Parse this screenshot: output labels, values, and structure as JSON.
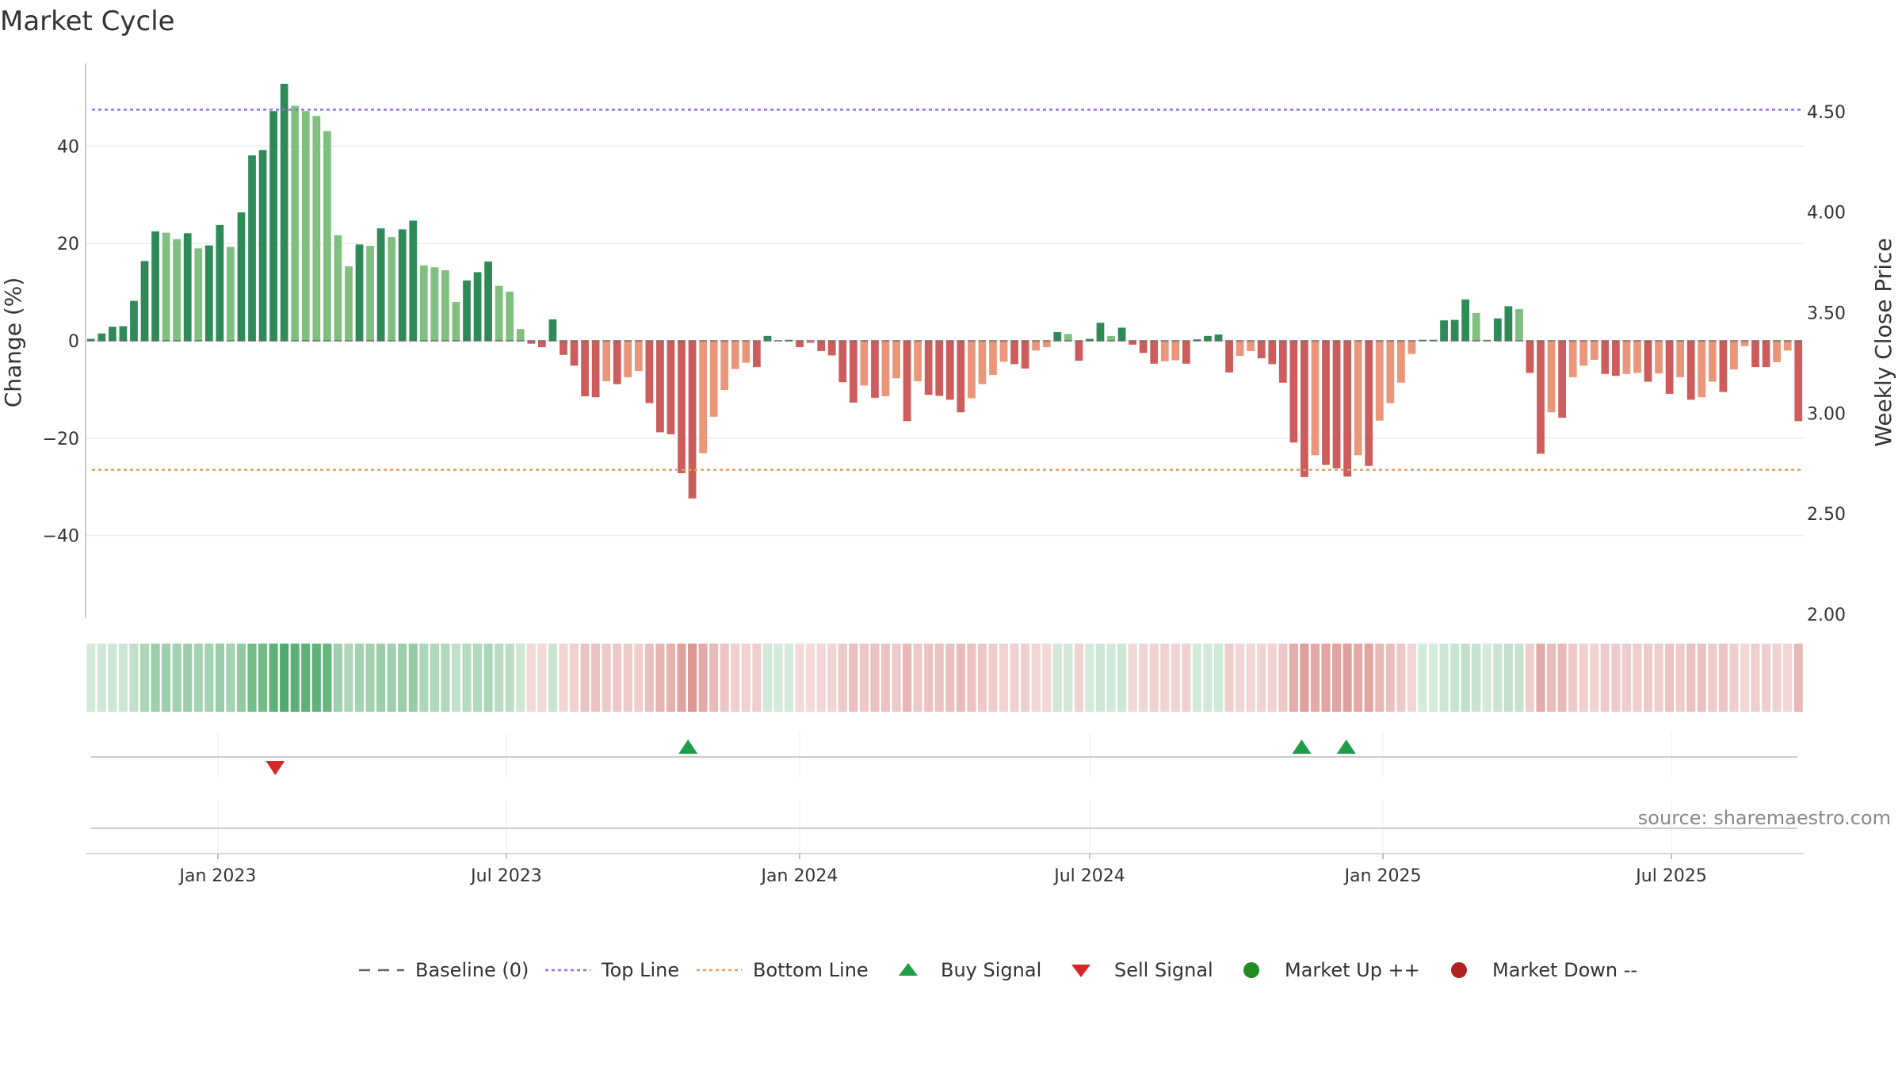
{
  "chart_data": {
    "type": "bar",
    "title": "Market Cycle",
    "ylabel": "Change (%)",
    "y2label": "Weekly Close Price",
    "ylim": [
      -57,
      57
    ],
    "y2lim": [
      1.98,
      4.74
    ],
    "yticks": [
      -40,
      -20,
      0,
      20,
      40
    ],
    "yticks_labels": [
      "−40",
      "−20",
      "0",
      "20",
      "40"
    ],
    "y2ticks": [
      2.0,
      2.5,
      3.0,
      3.5,
      4.0,
      4.5
    ],
    "y2ticks_labels": [
      "2.00",
      "2.50",
      "3.00",
      "3.50",
      "4.00",
      "4.50"
    ],
    "x_start": "2022-10-10",
    "x_end": "2025-09-22",
    "xticks": [
      "2023-01-01",
      "2023-07-01",
      "2024-01-01",
      "2024-07-01",
      "2025-01-01",
      "2025-07-01"
    ],
    "xticks_labels": [
      "Jan 2023",
      "Jul 2023",
      "Jan 2024",
      "Jul 2024",
      "Jan 2025",
      "Jul 2025"
    ],
    "top_line": 47.5,
    "bottom_line": -26.5,
    "values": [
      0.4,
      1.5,
      2.9,
      3.0,
      8.2,
      16.4,
      22.5,
      22.2,
      20.9,
      22.1,
      19.0,
      19.6,
      23.8,
      19.3,
      26.4,
      38.1,
      39.2,
      47.2,
      52.8,
      48.3,
      47.2,
      46.2,
      43.1,
      21.7,
      15.3,
      19.8,
      19.5,
      23.1,
      21.3,
      22.9,
      24.7,
      15.5,
      15.1,
      14.5,
      8.0,
      12.4,
      14.1,
      16.3,
      11.3,
      10.1,
      2.4,
      -0.6,
      -1.3,
      4.4,
      -2.9,
      -5.1,
      -11.4,
      -11.6,
      -8.3,
      -8.9,
      -7.5,
      -6.2,
      -12.8,
      -18.8,
      -19.2,
      -27.2,
      -32.4,
      -23.1,
      -15.6,
      -10.1,
      -5.8,
      -4.5,
      -5.4,
      1.0,
      0.1,
      0.2,
      -1.3,
      -0.5,
      -2.1,
      -3.0,
      -8.5,
      -12.7,
      -9.2,
      -11.7,
      -11.4,
      -7.7,
      -16.5,
      -8.3,
      -11.1,
      -11.3,
      -12.1,
      -14.7,
      -11.8,
      -8.9,
      -7.0,
      -4.3,
      -4.8,
      -5.7,
      -2.0,
      -1.3,
      1.8,
      1.4,
      -4.1,
      0.4,
      3.7,
      1.0,
      2.7,
      -0.8,
      -2.5,
      -4.7,
      -4.2,
      -4.0,
      -4.7,
      0.3,
      1.0,
      1.3,
      -6.5,
      -3.1,
      -2.1,
      -3.6,
      -4.8,
      -8.6,
      -20.9,
      -28.0,
      -23.5,
      -25.5,
      -26.2,
      -27.9,
      -23.5,
      -25.7,
      -16.4,
      -12.8,
      -8.6,
      -2.7,
      0.2,
      0.2,
      4.2,
      4.3,
      8.5,
      5.7,
      0.2,
      4.6,
      7.1,
      6.5,
      -6.6,
      -23.2,
      -14.7,
      -15.8,
      -7.5,
      -5.1,
      -3.9,
      -6.8,
      -7.2,
      -6.8,
      -6.6,
      -8.4,
      -6.7,
      -10.9,
      -7.5,
      -12.1,
      -11.6,
      -8.4,
      -10.5,
      -5.9,
      -1.1,
      -5.4,
      -5.4,
      -4.4,
      -2.0,
      -16.5
    ],
    "buy_signals": [
      "2023-10-23",
      "2024-11-11",
      "2024-12-09"
    ],
    "sell_signals": [
      "2023-02-06"
    ],
    "legend": {
      "position": "bottom-center",
      "entries": [
        "Baseline (0)",
        "Top Line",
        "Bottom Line",
        "Buy Signal",
        "Sell Signal",
        "Market Up ++",
        "Market Down --"
      ]
    },
    "source": "source: sharemaestro.com"
  },
  "colors": {
    "up_dark": "#2e8b57",
    "up_light": "#7fbf7f",
    "down_dark": "#cd5c5c",
    "down_light": "#e9967a",
    "top_line": "#9370db",
    "bottom_line": "#e0a060",
    "buy": "#1f9e4a",
    "sell": "#d62728",
    "market_up": "#228b22",
    "market_down": "#b22222",
    "baseline": "#666666"
  }
}
